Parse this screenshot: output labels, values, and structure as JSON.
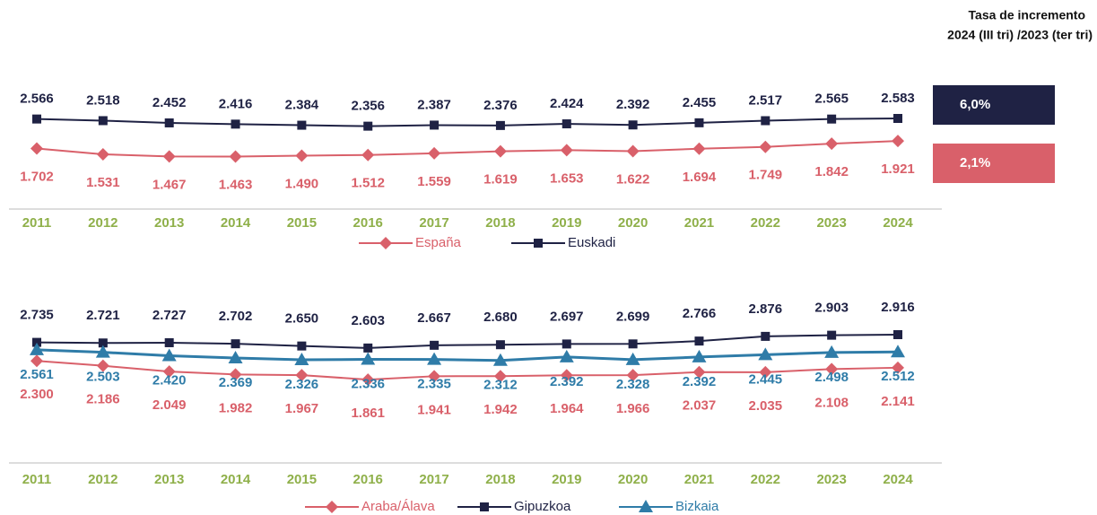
{
  "chart_data": [
    {
      "type": "line",
      "categories": [
        "2011",
        "2012",
        "2013",
        "2014",
        "2015",
        "2016",
        "2017",
        "2018",
        "2019",
        "2020",
        "2021",
        "2022",
        "2023",
        "2024"
      ],
      "series": [
        {
          "name": "España",
          "color": "#d9606a",
          "marker": "diamond",
          "values": [
            1702,
            1531,
            1467,
            1463,
            1490,
            1512,
            1559,
            1619,
            1653,
            1622,
            1694,
            1749,
            1842,
            1921
          ],
          "value_labels": [
            "1.702",
            "1.531",
            "1.467",
            "1.463",
            "1.490",
            "1.512",
            "1.559",
            "1.619",
            "1.653",
            "1.622",
            "1.694",
            "1.749",
            "1.842",
            "1.921"
          ]
        },
        {
          "name": "Euskadi",
          "color": "#1f2244",
          "marker": "square",
          "values": [
            2566,
            2518,
            2452,
            2416,
            2384,
            2356,
            2387,
            2376,
            2424,
            2392,
            2455,
            2517,
            2565,
            2583
          ],
          "value_labels": [
            "2.566",
            "2.518",
            "2.452",
            "2.416",
            "2.384",
            "2.356",
            "2.387",
            "2.376",
            "2.424",
            "2.392",
            "2.455",
            "2.517",
            "2.565",
            "2.583"
          ]
        }
      ]
    },
    {
      "type": "line",
      "categories": [
        "2011",
        "2012",
        "2013",
        "2014",
        "2015",
        "2016",
        "2017",
        "2018",
        "2019",
        "2020",
        "2021",
        "2022",
        "2023",
        "2024"
      ],
      "series": [
        {
          "name": "Araba/Álava",
          "color": "#d9606a",
          "marker": "diamond",
          "values": [
            2300,
            2186,
            2049,
            1982,
            1967,
            1861,
            1941,
            1942,
            1964,
            1966,
            2037,
            2035,
            2108,
            2141
          ],
          "value_labels": [
            "2.300",
            "2.186",
            "2.049",
            "1.982",
            "1.967",
            "1.861",
            "1.941",
            "1.942",
            "1.964",
            "1.966",
            "2.037",
            "2.035",
            "2.108",
            "2.141"
          ]
        },
        {
          "name": "Gipuzkoa",
          "color": "#1f2244",
          "marker": "square",
          "values": [
            2735,
            2721,
            2727,
            2702,
            2650,
            2603,
            2667,
            2680,
            2697,
            2699,
            2766,
            2876,
            2903,
            2916
          ],
          "value_labels": [
            "2.735",
            "2.721",
            "2.727",
            "2.702",
            "2.650",
            "2.603",
            "2.667",
            "2.680",
            "2.697",
            "2.699",
            "2.766",
            "2.876",
            "2.903",
            "2.916"
          ]
        },
        {
          "name": "Bizkaia",
          "color": "#2f7ca8",
          "marker": "triangle",
          "values": [
            2561,
            2503,
            2420,
            2369,
            2326,
            2336,
            2335,
            2312,
            2392,
            2328,
            2392,
            2445,
            2498,
            2512
          ],
          "value_labels": [
            "2.561",
            "2.503",
            "2.420",
            "2.369",
            "2.326",
            "2.336",
            "2.335",
            "2.312",
            "2.392",
            "2.328",
            "2.392",
            "2.445",
            "2.498",
            "2.512"
          ]
        }
      ]
    }
  ],
  "side_panel": {
    "title": [
      "Tasa de incremento",
      "2024 (III tri) /2023 (ter tri)"
    ],
    "boxes": [
      {
        "label": "6,0%",
        "color": "#1f2244"
      },
      {
        "label": "2,1%",
        "color": "#d9606a"
      }
    ]
  }
}
